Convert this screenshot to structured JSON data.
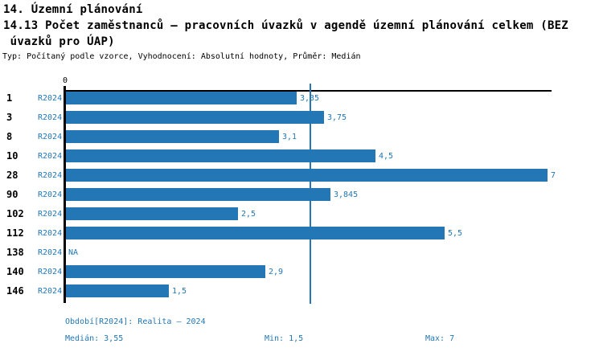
{
  "title": {
    "line1": "14. Územní plánování",
    "line2": "14.13 Počet zaměstnanců – pracovních úvazků v agendě územní plánování celkem (BEZ",
    "line3": " úvazků pro ÚAP)",
    "meta": "Typ: Počítaný podle vzorce, Vyhodnocení: Absolutní hodnoty, Průměr: Medián"
  },
  "chart_data": {
    "type": "bar",
    "orientation": "horizontal",
    "series_name": "R2024",
    "axis_zero_label": "0",
    "xlim": [
      0,
      7
    ],
    "grid": false,
    "median": 3.55,
    "categories": [
      "1",
      "3",
      "8",
      "10",
      "28",
      "90",
      "102",
      "112",
      "138",
      "140",
      "146"
    ],
    "rows": [
      {
        "id": "1",
        "period": "R2024",
        "value": 3.35,
        "display": "3,35"
      },
      {
        "id": "3",
        "period": "R2024",
        "value": 3.75,
        "display": "3,75"
      },
      {
        "id": "8",
        "period": "R2024",
        "value": 3.1,
        "display": "3,1"
      },
      {
        "id": "10",
        "period": "R2024",
        "value": 4.5,
        "display": "4,5"
      },
      {
        "id": "28",
        "period": "R2024",
        "value": 7,
        "display": "7"
      },
      {
        "id": "90",
        "period": "R2024",
        "value": 3.845,
        "display": "3,845"
      },
      {
        "id": "102",
        "period": "R2024",
        "value": 2.5,
        "display": "2,5"
      },
      {
        "id": "112",
        "period": "R2024",
        "value": 5.5,
        "display": "5,5"
      },
      {
        "id": "138",
        "period": "R2024",
        "value": null,
        "display": "NA"
      },
      {
        "id": "140",
        "period": "R2024",
        "value": 2.9,
        "display": "2,9"
      },
      {
        "id": "146",
        "period": "R2024",
        "value": 1.5,
        "display": "1,5"
      }
    ]
  },
  "footer": {
    "period_info": "Období[R2024]: Realita – 2024",
    "median_label": "Medián: 3,55",
    "min_label": "Min: 1,5",
    "max_label": "Max: 7"
  },
  "colors": {
    "accent": "#2277b4",
    "axis": "#000000",
    "background": "#ffffff"
  }
}
